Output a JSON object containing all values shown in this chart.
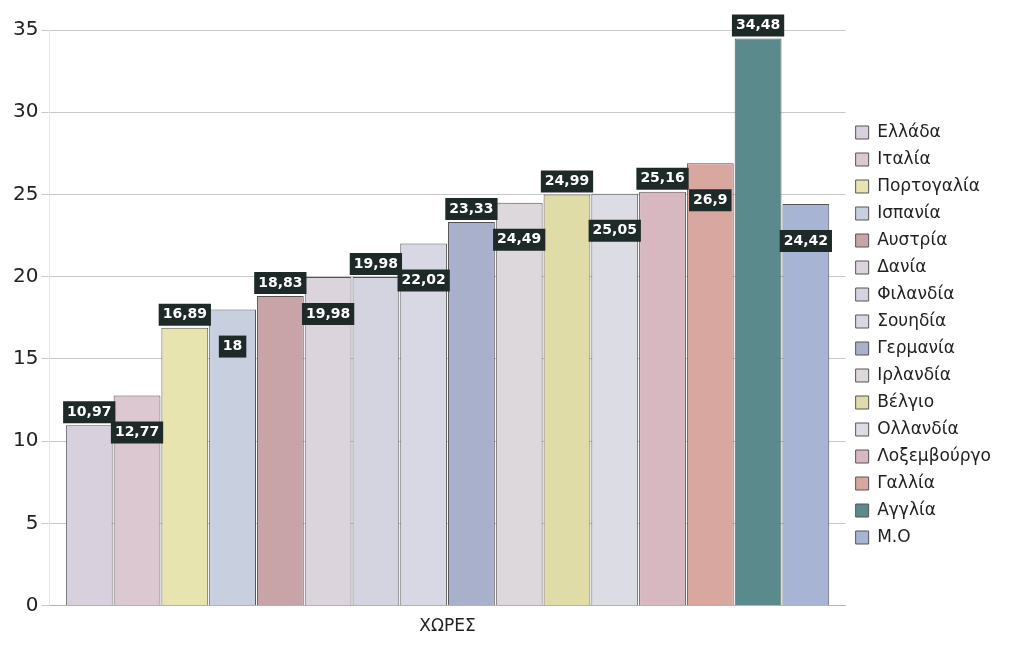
{
  "chart_data": {
    "type": "bar",
    "categories": [
      "ΧΩΡΕΣ"
    ],
    "ylim": [
      0,
      35
    ],
    "yticks": [
      0,
      5,
      10,
      15,
      20,
      25,
      30,
      35
    ],
    "grid": "y",
    "legend": "right",
    "series": [
      {
        "name": "Ελλάδα",
        "color": "#d8d0dc",
        "values": [
          10.97
        ],
        "value_labels": [
          "10,97"
        ]
      },
      {
        "name": "Ιταλία",
        "color": "#dcc8d0",
        "values": [
          12.77
        ],
        "value_labels": [
          "12,77"
        ]
      },
      {
        "name": "Πορτογαλία",
        "color": "#e8e4b0",
        "values": [
          16.89
        ],
        "value_labels": [
          "16,89"
        ]
      },
      {
        "name": "Ισπανία",
        "color": "#c8d0e0",
        "values": [
          18
        ],
        "value_labels": [
          "18"
        ]
      },
      {
        "name": "Αυστρία",
        "color": "#c8a4a8",
        "values": [
          18.83
        ],
        "value_labels": [
          "18,83"
        ]
      },
      {
        "name": "Δανία",
        "color": "#dcd4dc",
        "values": [
          19.98
        ],
        "value_labels": [
          "19,98"
        ]
      },
      {
        "name": "Φιλανδία",
        "color": "#d4d4e0",
        "values": [
          19.98
        ],
        "value_labels": [
          "19,98"
        ]
      },
      {
        "name": "Σουηδία",
        "color": "#d8d8e4",
        "values": [
          22.02
        ],
        "value_labels": [
          "22,02"
        ]
      },
      {
        "name": "Γερμανία",
        "color": "#a8b0cc",
        "values": [
          23.33
        ],
        "value_labels": [
          "23,33"
        ]
      },
      {
        "name": "Ιρλανδία",
        "color": "#dcd8dc",
        "values": [
          24.49
        ],
        "value_labels": [
          "24,49"
        ]
      },
      {
        "name": "Βέλγιο",
        "color": "#e0dca8",
        "values": [
          24.99
        ],
        "value_labels": [
          "24,99"
        ]
      },
      {
        "name": "Ολλανδία",
        "color": "#dcdce4",
        "values": [
          25.05
        ],
        "value_labels": [
          "25,05"
        ]
      },
      {
        "name": "Λοξεμβούργο",
        "color": "#d8b8c0",
        "values": [
          25.16
        ],
        "value_labels": [
          "25,16"
        ]
      },
      {
        "name": "Γαλλία",
        "color": "#d8a8a0",
        "values": [
          26.9
        ],
        "value_labels": [
          "26,9"
        ]
      },
      {
        "name": "Αγγλία",
        "color": "#5a8a8c",
        "values": [
          34.48
        ],
        "value_labels": [
          "34,48"
        ]
      },
      {
        "name": "Μ.Ο",
        "color": "#a8b4d4",
        "values": [
          24.42
        ],
        "value_labels": [
          "24,42"
        ]
      }
    ]
  }
}
